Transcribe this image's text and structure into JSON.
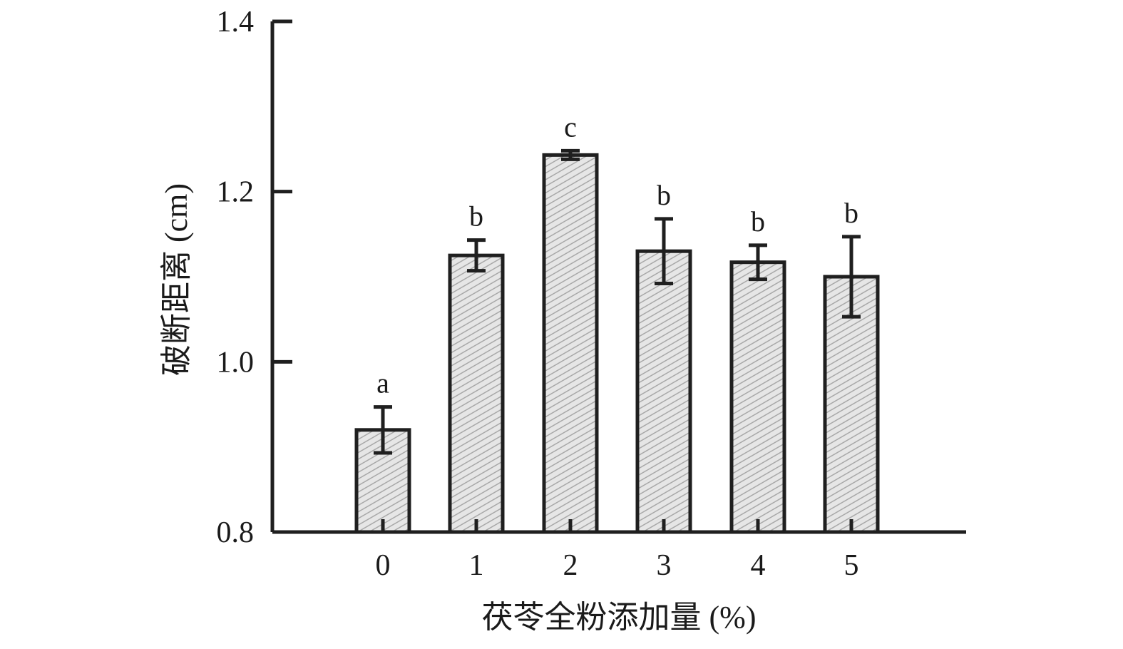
{
  "chart_data": {
    "type": "bar",
    "categories": [
      "0",
      "1",
      "2",
      "3",
      "4",
      "5"
    ],
    "values": [
      0.92,
      1.125,
      1.243,
      1.13,
      1.117,
      1.1
    ],
    "errors": [
      0.027,
      0.018,
      0.005,
      0.038,
      0.02,
      0.047
    ],
    "significance": [
      "a",
      "b",
      "c",
      "b",
      "b",
      "b"
    ],
    "xlabel": "茯苓全粉添加量 (%)",
    "ylabel": "破断距离 (cm)",
    "ylim": [
      0.8,
      1.4
    ],
    "yticks": [
      "0.8",
      "1.0",
      "1.2",
      "1.4"
    ],
    "grid": false,
    "bar_fill": "#d9d9d9",
    "bar_hatch_color": "#9a9a9a",
    "outline_color": "#1f1f1f"
  }
}
